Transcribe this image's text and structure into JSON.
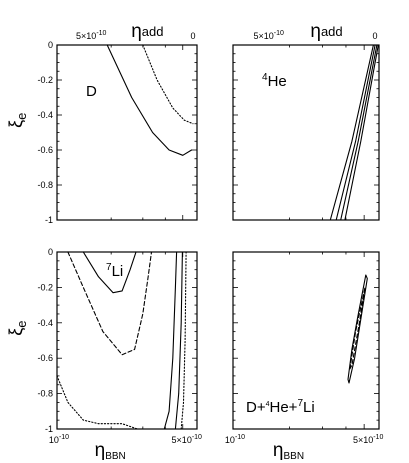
{
  "chart_data": {
    "type": "line",
    "panels": [
      {
        "id": "d",
        "label_main": "D",
        "label_sup": "",
        "label_tail": ""
      },
      {
        "id": "he4",
        "label_main": "He",
        "label_sup": "4",
        "label_tail": ""
      },
      {
        "id": "li7",
        "label_main": "Li",
        "label_sup": "7",
        "label_tail": ""
      },
      {
        "id": "combined",
        "label_main": "D+",
        "label_sup": "4",
        "label_mid": "He+",
        "label_sup2": "7",
        "label_tail": "Li"
      }
    ],
    "top_axis": {
      "title_symbol": "η",
      "title_sub": "add",
      "tick_labels": [
        {
          "mant": "5×10",
          "exp": "-10"
        },
        {
          "text": "0"
        }
      ]
    },
    "bottom_axis": {
      "title_symbol": "η",
      "title_sub": "BBN",
      "range": [
        1e-10,
        6e-10
      ],
      "tick_labels": [
        {
          "mant": "10",
          "exp": "-10"
        },
        {
          "mant": "5×10",
          "exp": "-10"
        }
      ]
    },
    "y_axis": {
      "title_symbol": "ξ",
      "title_sub": "e",
      "range": [
        -1,
        0
      ],
      "tick_labels": [
        "0",
        "-0.2",
        "-0.4",
        "-0.6",
        "-0.8",
        "-1"
      ]
    },
    "curves": {
      "d": [
        {
          "style": "solid",
          "points": [
            [
              1.9e-10,
              0
            ],
            [
              2.6e-10,
              -0.3
            ],
            [
              3.4e-10,
              -0.5
            ],
            [
              4.2e-10,
              -0.6
            ],
            [
              5e-10,
              -0.63
            ],
            [
              5.6e-10,
              -0.6
            ]
          ]
        },
        {
          "style": "dotted",
          "points": [
            [
              3e-10,
              0
            ],
            [
              3.6e-10,
              -0.2
            ],
            [
              4.4e-10,
              -0.36
            ],
            [
              5.1e-10,
              -0.43
            ],
            [
              5.7e-10,
              -0.45
            ]
          ]
        }
      ],
      "he4": [
        {
          "style": "solid",
          "points": [
            [
              3.3e-10,
              -1
            ],
            [
              4.3e-10,
              -0.55
            ],
            [
              5.6e-10,
              0
            ]
          ]
        },
        {
          "style": "solid",
          "points": [
            [
              3.55e-10,
              -1
            ],
            [
              4.5e-10,
              -0.55
            ],
            [
              5.72e-10,
              0
            ]
          ]
        },
        {
          "style": "solid",
          "points": [
            [
              3.75e-10,
              -1
            ],
            [
              4.65e-10,
              -0.55
            ],
            [
              5.85e-10,
              0
            ]
          ]
        },
        {
          "style": "solid",
          "points": [
            [
              3.95e-10,
              -1
            ],
            [
              4.8e-10,
              -0.55
            ],
            [
              5.95e-10,
              0
            ]
          ]
        }
      ],
      "li7": [
        {
          "style": "solid",
          "points": [
            [
              1.4e-10,
              0
            ],
            [
              1.7e-10,
              -0.14
            ],
            [
              2.05e-10,
              -0.23
            ],
            [
              2.3e-10,
              -0.22
            ],
            [
              2.55e-10,
              -0.1
            ],
            [
              2.75e-10,
              0
            ]
          ]
        },
        {
          "style": "dashed",
          "points": [
            [
              1.15e-10,
              0
            ],
            [
              1.4e-10,
              -0.2
            ],
            [
              1.8e-10,
              -0.45
            ],
            [
              2.3e-10,
              -0.58
            ],
            [
              2.7e-10,
              -0.55
            ],
            [
              3e-10,
              -0.35
            ],
            [
              3.2e-10,
              -0.15
            ],
            [
              3.35e-10,
              0
            ]
          ]
        },
        {
          "style": "dotted",
          "points": [
            [
              1e-10,
              -0.7
            ],
            [
              1.15e-10,
              -0.85
            ],
            [
              1.4e-10,
              -0.95
            ],
            [
              1.7e-10,
              -0.97
            ],
            [
              2.3e-10,
              -0.97
            ],
            [
              2.8e-10,
              -1
            ]
          ]
        },
        {
          "style": "solid",
          "points": [
            [
              3.95e-10,
              -1
            ],
            [
              4.2e-10,
              -0.9
            ],
            [
              4.4e-10,
              -0.6
            ],
            [
              4.55e-10,
              -0.2
            ],
            [
              4.62e-10,
              0
            ]
          ]
        },
        {
          "style": "solid",
          "points": [
            [
              4.55e-10,
              -1
            ],
            [
              4.75e-10,
              -0.8
            ],
            [
              4.9e-10,
              -0.4
            ],
            [
              4.98e-10,
              0
            ]
          ]
        },
        {
          "style": "dotted",
          "points": [
            [
              4.9e-10,
              -1
            ],
            [
              5.05e-10,
              -0.85
            ],
            [
              5.15e-10,
              -0.5
            ],
            [
              5.22e-10,
              0
            ]
          ]
        }
      ],
      "combined": [
        {
          "style": "solid",
          "points": [
            [
              4.1e-10,
              -0.72
            ],
            [
              4.3e-10,
              -0.55
            ],
            [
              4.6e-10,
              -0.38
            ],
            [
              5.1e-10,
              -0.13
            ],
            [
              5.2e-10,
              -0.15
            ],
            [
              4.8e-10,
              -0.38
            ],
            [
              4.45e-10,
              -0.6
            ],
            [
              4.15e-10,
              -0.74
            ],
            [
              4.1e-10,
              -0.72
            ]
          ]
        },
        {
          "style": "dashed",
          "points": [
            [
              4.2e-10,
              -0.66
            ],
            [
              4.5e-10,
              -0.45
            ],
            [
              5.05e-10,
              -0.2
            ],
            [
              4.75e-10,
              -0.38
            ],
            [
              4.3e-10,
              -0.64
            ],
            [
              4.2e-10,
              -0.66
            ]
          ]
        }
      ]
    }
  }
}
